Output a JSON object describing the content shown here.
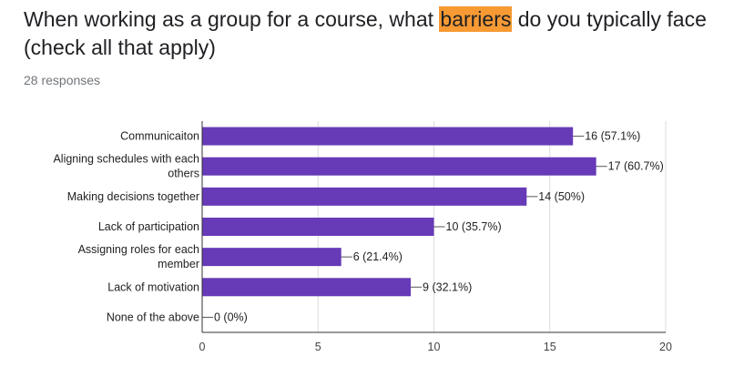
{
  "question": {
    "before": "When working as a group for a course, what ",
    "highlight": "barriers",
    "after": " do you typically face (check all that apply)",
    "highlight_color": "#f79a33"
  },
  "response_count": "28 responses",
  "chart_data": {
    "type": "bar",
    "orientation": "horizontal",
    "categories": [
      [
        "Communicaiton"
      ],
      [
        "Aligning schedules with each",
        "others"
      ],
      [
        "Making decisions together"
      ],
      [
        "Lack of participation"
      ],
      [
        "Assigning roles for each",
        "member"
      ],
      [
        "Lack of motivation"
      ],
      [
        "None of the above"
      ]
    ],
    "values": [
      16,
      17,
      14,
      10,
      6,
      9,
      0
    ],
    "data_labels": [
      "16 (57.1%)",
      "17 (60.7%)",
      "14 (50%)",
      "10 (35.7%)",
      "6 (21.4%)",
      "9 (32.1%)",
      "0 (0%)"
    ],
    "xlim": [
      0,
      20
    ],
    "x_ticks": [
      "0",
      "5",
      "10",
      "15",
      "20"
    ],
    "bar_color": "#673ab7",
    "grid": true
  }
}
